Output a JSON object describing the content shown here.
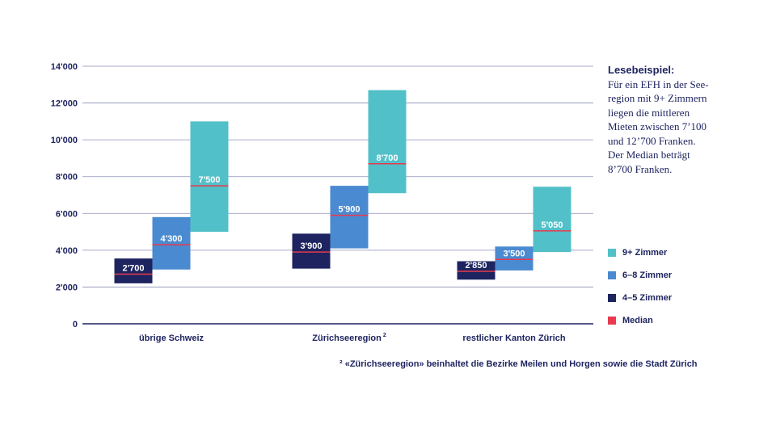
{
  "chart_data": {
    "type": "bar",
    "y_ticks": [
      "0",
      "2'000",
      "4'000",
      "6'000",
      "8'000",
      "10'000",
      "12'000",
      "14'000"
    ],
    "ylim": [
      0,
      14000
    ],
    "grid": true,
    "legend_position": "right",
    "groups": [
      {
        "label": "übrige Schweiz",
        "superscript": "",
        "boxes": [
          {
            "series": "4–5 Zimmer",
            "low": 2200,
            "high": 3550,
            "median": 2700,
            "median_label": "2'700"
          },
          {
            "series": "6–8 Zimmer",
            "low": 2950,
            "high": 5800,
            "median": 4300,
            "median_label": "4'300"
          },
          {
            "series": "9+ Zimmer",
            "low": 5000,
            "high": 11000,
            "median": 7500,
            "median_label": "7'500"
          }
        ]
      },
      {
        "label": "Zürichseeregion",
        "superscript": "2",
        "boxes": [
          {
            "series": "4–5 Zimmer",
            "low": 3000,
            "high": 4900,
            "median": 3900,
            "median_label": "3'900"
          },
          {
            "series": "6–8 Zimmer",
            "low": 4100,
            "high": 7500,
            "median": 5900,
            "median_label": "5'900"
          },
          {
            "series": "9+ Zimmer",
            "low": 7100,
            "high": 12700,
            "median": 8700,
            "median_label": "8'700"
          }
        ]
      },
      {
        "label": "restlicher Kanton Zürich",
        "superscript": "",
        "boxes": [
          {
            "series": "4–5 Zimmer",
            "low": 2400,
            "high": 3400,
            "median": 2850,
            "median_label": "2'850"
          },
          {
            "series": "6–8 Zimmer",
            "low": 2900,
            "high": 4200,
            "median": 3500,
            "median_label": "3'500"
          },
          {
            "series": "9+ Zimmer",
            "low": 3900,
            "high": 7450,
            "median": 5050,
            "median_label": "5'050"
          }
        ]
      }
    ],
    "series": [
      {
        "name": "9+ Zimmer",
        "color": "#52c0c8"
      },
      {
        "name": "6–8 Zimmer",
        "color": "#4a8ad0"
      },
      {
        "name": "4–5 Zimmer",
        "color": "#1e2460"
      }
    ],
    "median": {
      "name": "Median",
      "color": "#e8394e"
    }
  },
  "note": {
    "title": "Lesebeispiel:",
    "lines": [
      "Für ein EFH in der See-",
      "region mit 9+ Zimmern",
      "liegen die mittleren",
      "Mieten zwischen 7’100",
      "und 12’700 Franken.",
      "Der Median beträgt",
      "8’700 Franken."
    ]
  },
  "footnote": "² «Zürichseeregion» beinhaltet die Bezirke Meilen und Horgen sowie die Stadt Zürich",
  "colors": {
    "text": "#1e2460",
    "grid": "#8a8fb8",
    "axis": "#1e2460"
  }
}
